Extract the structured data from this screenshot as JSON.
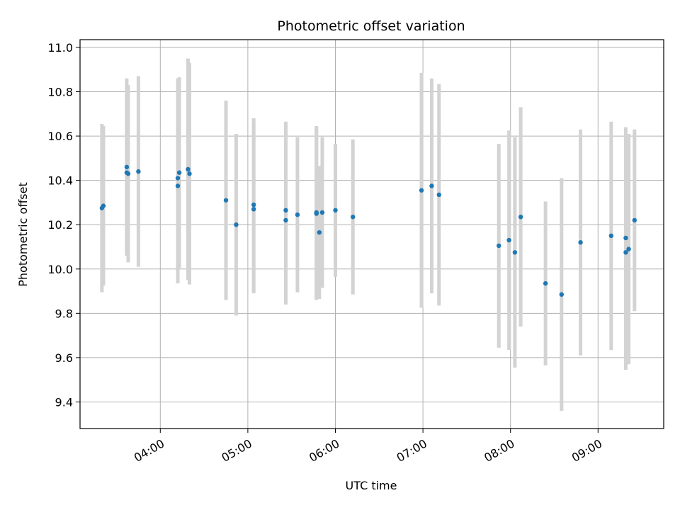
{
  "chart_data": {
    "type": "scatter",
    "title": "Photometric offset variation",
    "xlabel": "UTC time",
    "ylabel": "Photometric offset",
    "xlim": [
      "03:05",
      "09:45"
    ],
    "ylim": [
      9.28,
      11.035
    ],
    "grid": true,
    "x_ticks": [
      "04:00",
      "05:00",
      "06:00",
      "07:00",
      "08:00",
      "09:00"
    ],
    "y_ticks": [
      9.4,
      9.6,
      9.8,
      10.0,
      10.2,
      10.4,
      10.6,
      10.8,
      11.0
    ],
    "y_tick_labels": [
      "9.4",
      "9.6",
      "9.8",
      "10.0",
      "10.2",
      "10.4",
      "10.6",
      "10.8",
      "11.0"
    ],
    "point_color": "#1f77b4",
    "errorbar_color": "#d3d3d3",
    "points": [
      {
        "x": "03:20",
        "y": 10.275,
        "yerr": 0.38
      },
      {
        "x": "03:21",
        "y": 10.285,
        "yerr": 0.36
      },
      {
        "x": "03:37",
        "y": 10.46,
        "yerr": 0.4
      },
      {
        "x": "03:37",
        "y": 10.435,
        "yerr": 0.37
      },
      {
        "x": "03:38",
        "y": 10.43,
        "yerr": 0.4
      },
      {
        "x": "03:45",
        "y": 10.44,
        "yerr": 0.43
      },
      {
        "x": "04:12",
        "y": 10.41,
        "yerr": 0.45
      },
      {
        "x": "04:12",
        "y": 10.375,
        "yerr": 0.44
      },
      {
        "x": "04:13",
        "y": 10.435,
        "yerr": 0.43
      },
      {
        "x": "04:19",
        "y": 10.45,
        "yerr": 0.5
      },
      {
        "x": "04:20",
        "y": 10.43,
        "yerr": 0.5
      },
      {
        "x": "04:45",
        "y": 10.31,
        "yerr": 0.45
      },
      {
        "x": "04:52",
        "y": 10.2,
        "yerr": 0.41
      },
      {
        "x": "05:04",
        "y": 10.29,
        "yerr": 0.39
      },
      {
        "x": "05:04",
        "y": 10.27,
        "yerr": 0.38
      },
      {
        "x": "05:26",
        "y": 10.265,
        "yerr": 0.4
      },
      {
        "x": "05:26",
        "y": 10.22,
        "yerr": 0.38
      },
      {
        "x": "05:34",
        "y": 10.245,
        "yerr": 0.35
      },
      {
        "x": "05:47",
        "y": 10.25,
        "yerr": 0.39
      },
      {
        "x": "05:47",
        "y": 10.255,
        "yerr": 0.39
      },
      {
        "x": "05:49",
        "y": 10.165,
        "yerr": 0.3
      },
      {
        "x": "05:51",
        "y": 10.255,
        "yerr": 0.34
      },
      {
        "x": "06:00",
        "y": 10.265,
        "yerr": 0.3
      },
      {
        "x": "06:12",
        "y": 10.235,
        "yerr": 0.35
      },
      {
        "x": "06:59",
        "y": 10.355,
        "yerr": 0.53
      },
      {
        "x": "07:06",
        "y": 10.375,
        "yerr": 0.485
      },
      {
        "x": "07:11",
        "y": 10.335,
        "yerr": 0.5
      },
      {
        "x": "07:52",
        "y": 10.105,
        "yerr": 0.46
      },
      {
        "x": "07:59",
        "y": 10.13,
        "yerr": 0.495
      },
      {
        "x": "08:03",
        "y": 10.075,
        "yerr": 0.52
      },
      {
        "x": "08:07",
        "y": 10.235,
        "yerr": 0.495
      },
      {
        "x": "08:24",
        "y": 9.935,
        "yerr": 0.37
      },
      {
        "x": "08:35",
        "y": 9.885,
        "yerr": 0.525
      },
      {
        "x": "08:48",
        "y": 10.12,
        "yerr": 0.51
      },
      {
        "x": "09:09",
        "y": 10.15,
        "yerr": 0.515
      },
      {
        "x": "09:19",
        "y": 10.14,
        "yerr": 0.5
      },
      {
        "x": "09:19",
        "y": 10.075,
        "yerr": 0.53
      },
      {
        "x": "09:21",
        "y": 10.09,
        "yerr": 0.52
      },
      {
        "x": "09:25",
        "y": 10.22,
        "yerr": 0.41
      }
    ]
  }
}
